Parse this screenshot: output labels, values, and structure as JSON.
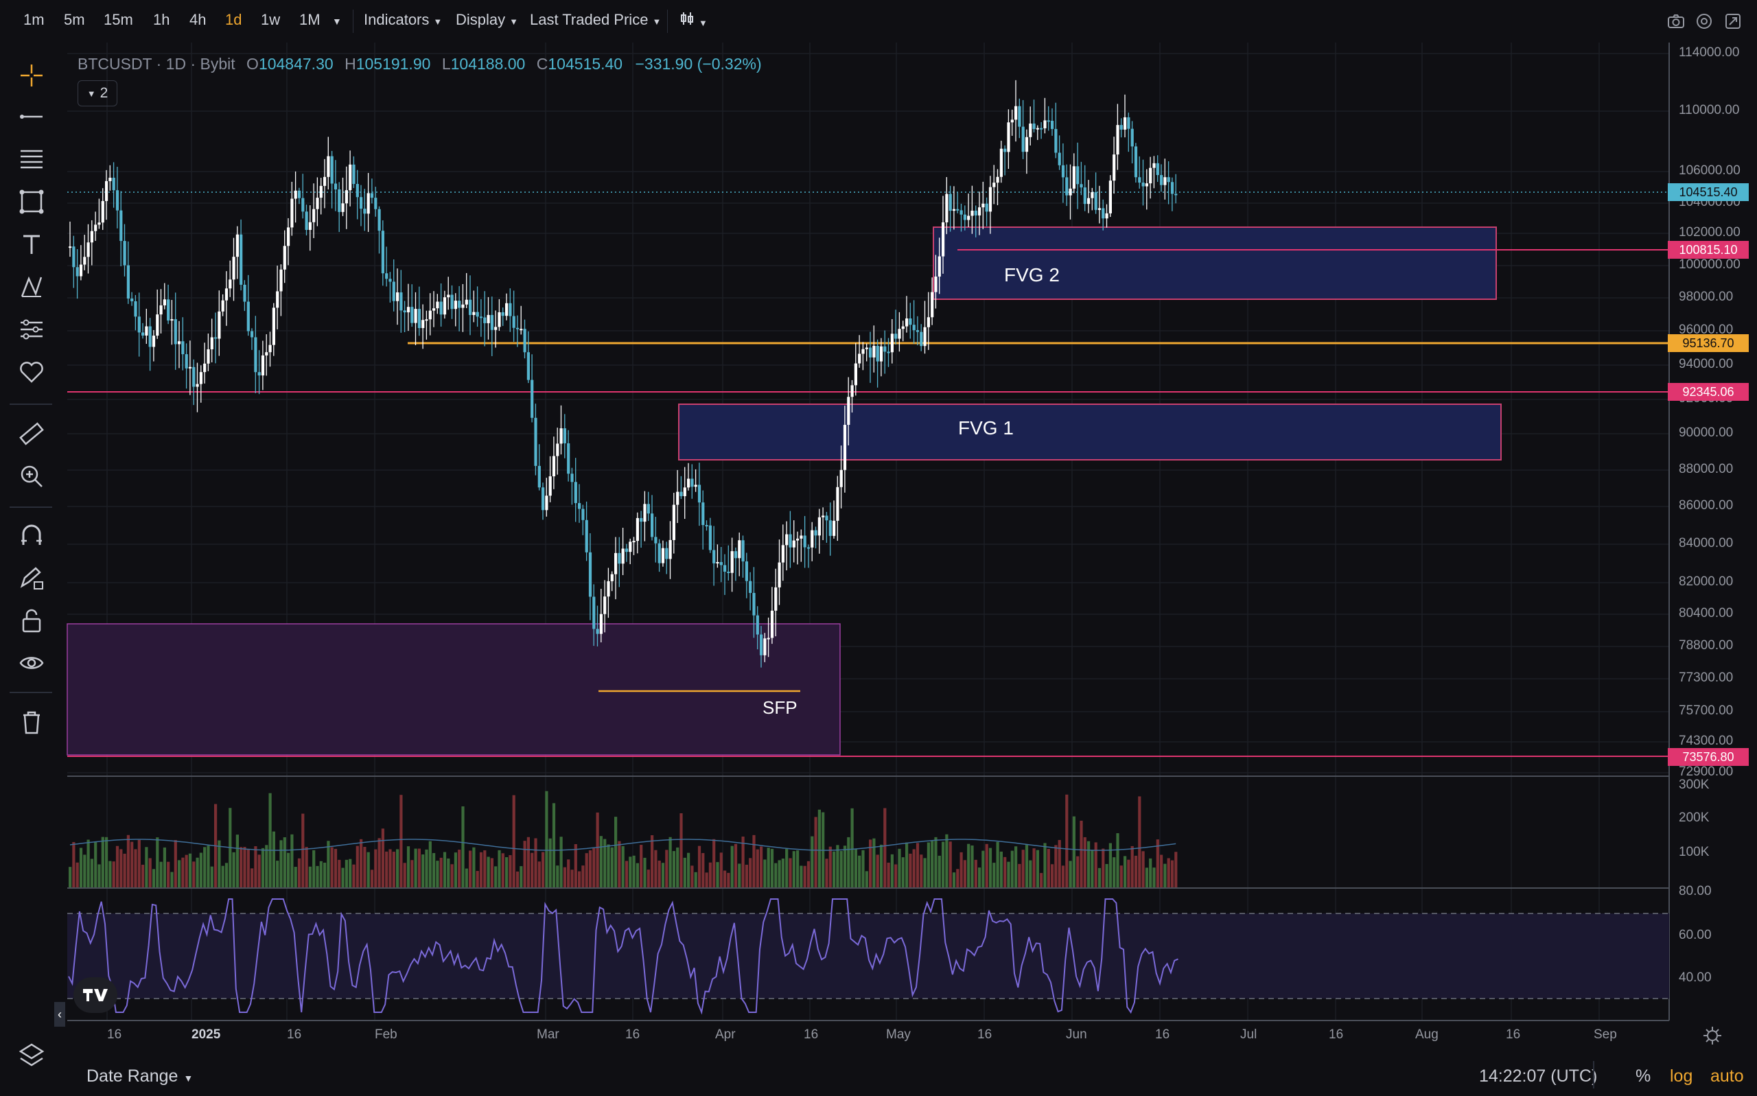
{
  "toolbar": {
    "timeframes": [
      "1m",
      "5m",
      "15m",
      "1h",
      "4h",
      "1d",
      "1w",
      "1M"
    ],
    "active_timeframe": "1d",
    "indicators_label": "Indicators",
    "display_label": "Display",
    "price_source_label": "Last Traded Price"
  },
  "legend": {
    "symbol": "BTCUSDT",
    "interval": "1D",
    "exchange": "Bybit",
    "open_label": "O",
    "open": "104847.30",
    "high_label": "H",
    "high": "105191.90",
    "low_label": "L",
    "low": "104188.00",
    "close_label": "C",
    "close": "104515.40",
    "change": "−331.90 (−0.32%)",
    "collapse_count": "2"
  },
  "annotations": {
    "fvg2": "FVG 2",
    "fvg1": "FVG 1",
    "sfp": "SFP"
  },
  "price_axis": {
    "labels": [
      "114000.00",
      "110000.00",
      "106000.00",
      "104000.00",
      "102000.00",
      "100000.00",
      "98000.00",
      "96000.00",
      "94000.00",
      "92000.00",
      "90000.00",
      "88000.00",
      "86000.00",
      "84000.00",
      "82000.00",
      "80400.00",
      "78800.00",
      "77300.00",
      "75700.00",
      "74300.00",
      "72900.00"
    ],
    "current_price": "104515.40",
    "line_prices": [
      "100815.10",
      "95136.70",
      "92345.06",
      "73576.80"
    ]
  },
  "volume_axis": {
    "labels": [
      "300K",
      "200K",
      "100K"
    ]
  },
  "rsi_axis": {
    "labels": [
      "80.00",
      "60.00",
      "40.00"
    ]
  },
  "time_axis": {
    "labels": [
      "16",
      "2025",
      "16",
      "Feb",
      "Mar",
      "16",
      "Apr",
      "16",
      "May",
      "16",
      "Jun",
      "16",
      "Jul",
      "16",
      "Aug",
      "16",
      "Sep"
    ]
  },
  "bottom_bar": {
    "date_range_label": "Date Range",
    "clock": "14:22:07 (UTC)",
    "percent_label": "%",
    "log_label": "log",
    "auto_label": "auto"
  },
  "colors": {
    "up": "#ffffff",
    "down": "#55b5cf",
    "current_price": "#4fb6d0",
    "orange": "#f0a830",
    "pink": "#e0356f",
    "fvg_fill": "#1b2250",
    "fvg_border": "#c8406e",
    "purple_zone": "#2a1838",
    "rsi_line": "#7b6ad9"
  }
}
